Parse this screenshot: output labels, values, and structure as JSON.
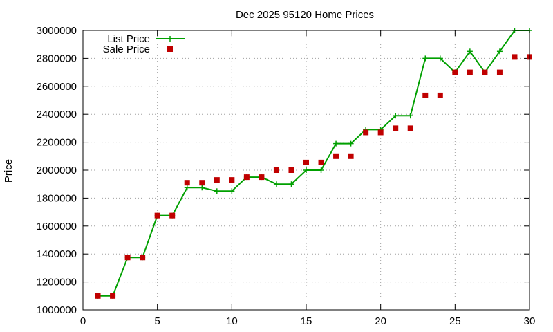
{
  "chart_data": {
    "type": "line",
    "title": "Dec 2025 95120 Home Prices",
    "xlabel": "",
    "ylabel": "Price",
    "xlim": [
      0,
      30
    ],
    "ylim": [
      1000000,
      3000000
    ],
    "x_ticks": [
      0,
      5,
      10,
      15,
      20,
      25,
      30
    ],
    "y_ticks": [
      1000000,
      1200000,
      1400000,
      1600000,
      1800000,
      2000000,
      2200000,
      2400000,
      2600000,
      2800000,
      3000000
    ],
    "grid": true,
    "legend_position": "top-left",
    "x": [
      1,
      2,
      3,
      4,
      5,
      6,
      7,
      8,
      9,
      10,
      11,
      12,
      13,
      14,
      15,
      16,
      17,
      18,
      19,
      20,
      21,
      22,
      23,
      24,
      25,
      26,
      27,
      28,
      29,
      30
    ],
    "series": [
      {
        "name": "List Price",
        "style": "line+cross",
        "color": "#00a000",
        "values": [
          1100000,
          1100000,
          1375000,
          1375000,
          1675000,
          1675000,
          1875000,
          1875000,
          1850000,
          1850000,
          1950000,
          1950000,
          1900000,
          1900000,
          2000000,
          2000000,
          2190000,
          2190000,
          2290000,
          2290000,
          2390000,
          2390000,
          2800000,
          2800000,
          2700000,
          2850000,
          2700000,
          2850000,
          3000000,
          3000000
        ]
      },
      {
        "name": "Sale Price",
        "style": "square",
        "color": "#c00000",
        "values": [
          1100000,
          1100000,
          1375000,
          1375000,
          1675000,
          1675000,
          1910000,
          1910000,
          1930000,
          1930000,
          1950000,
          1950000,
          2000000,
          2000000,
          2055000,
          2055000,
          2100000,
          2100000,
          2270000,
          2270000,
          2300000,
          2300000,
          2535000,
          2535000,
          2700000,
          2700000,
          2700000,
          2700000,
          2810000,
          2810000
        ]
      }
    ]
  }
}
